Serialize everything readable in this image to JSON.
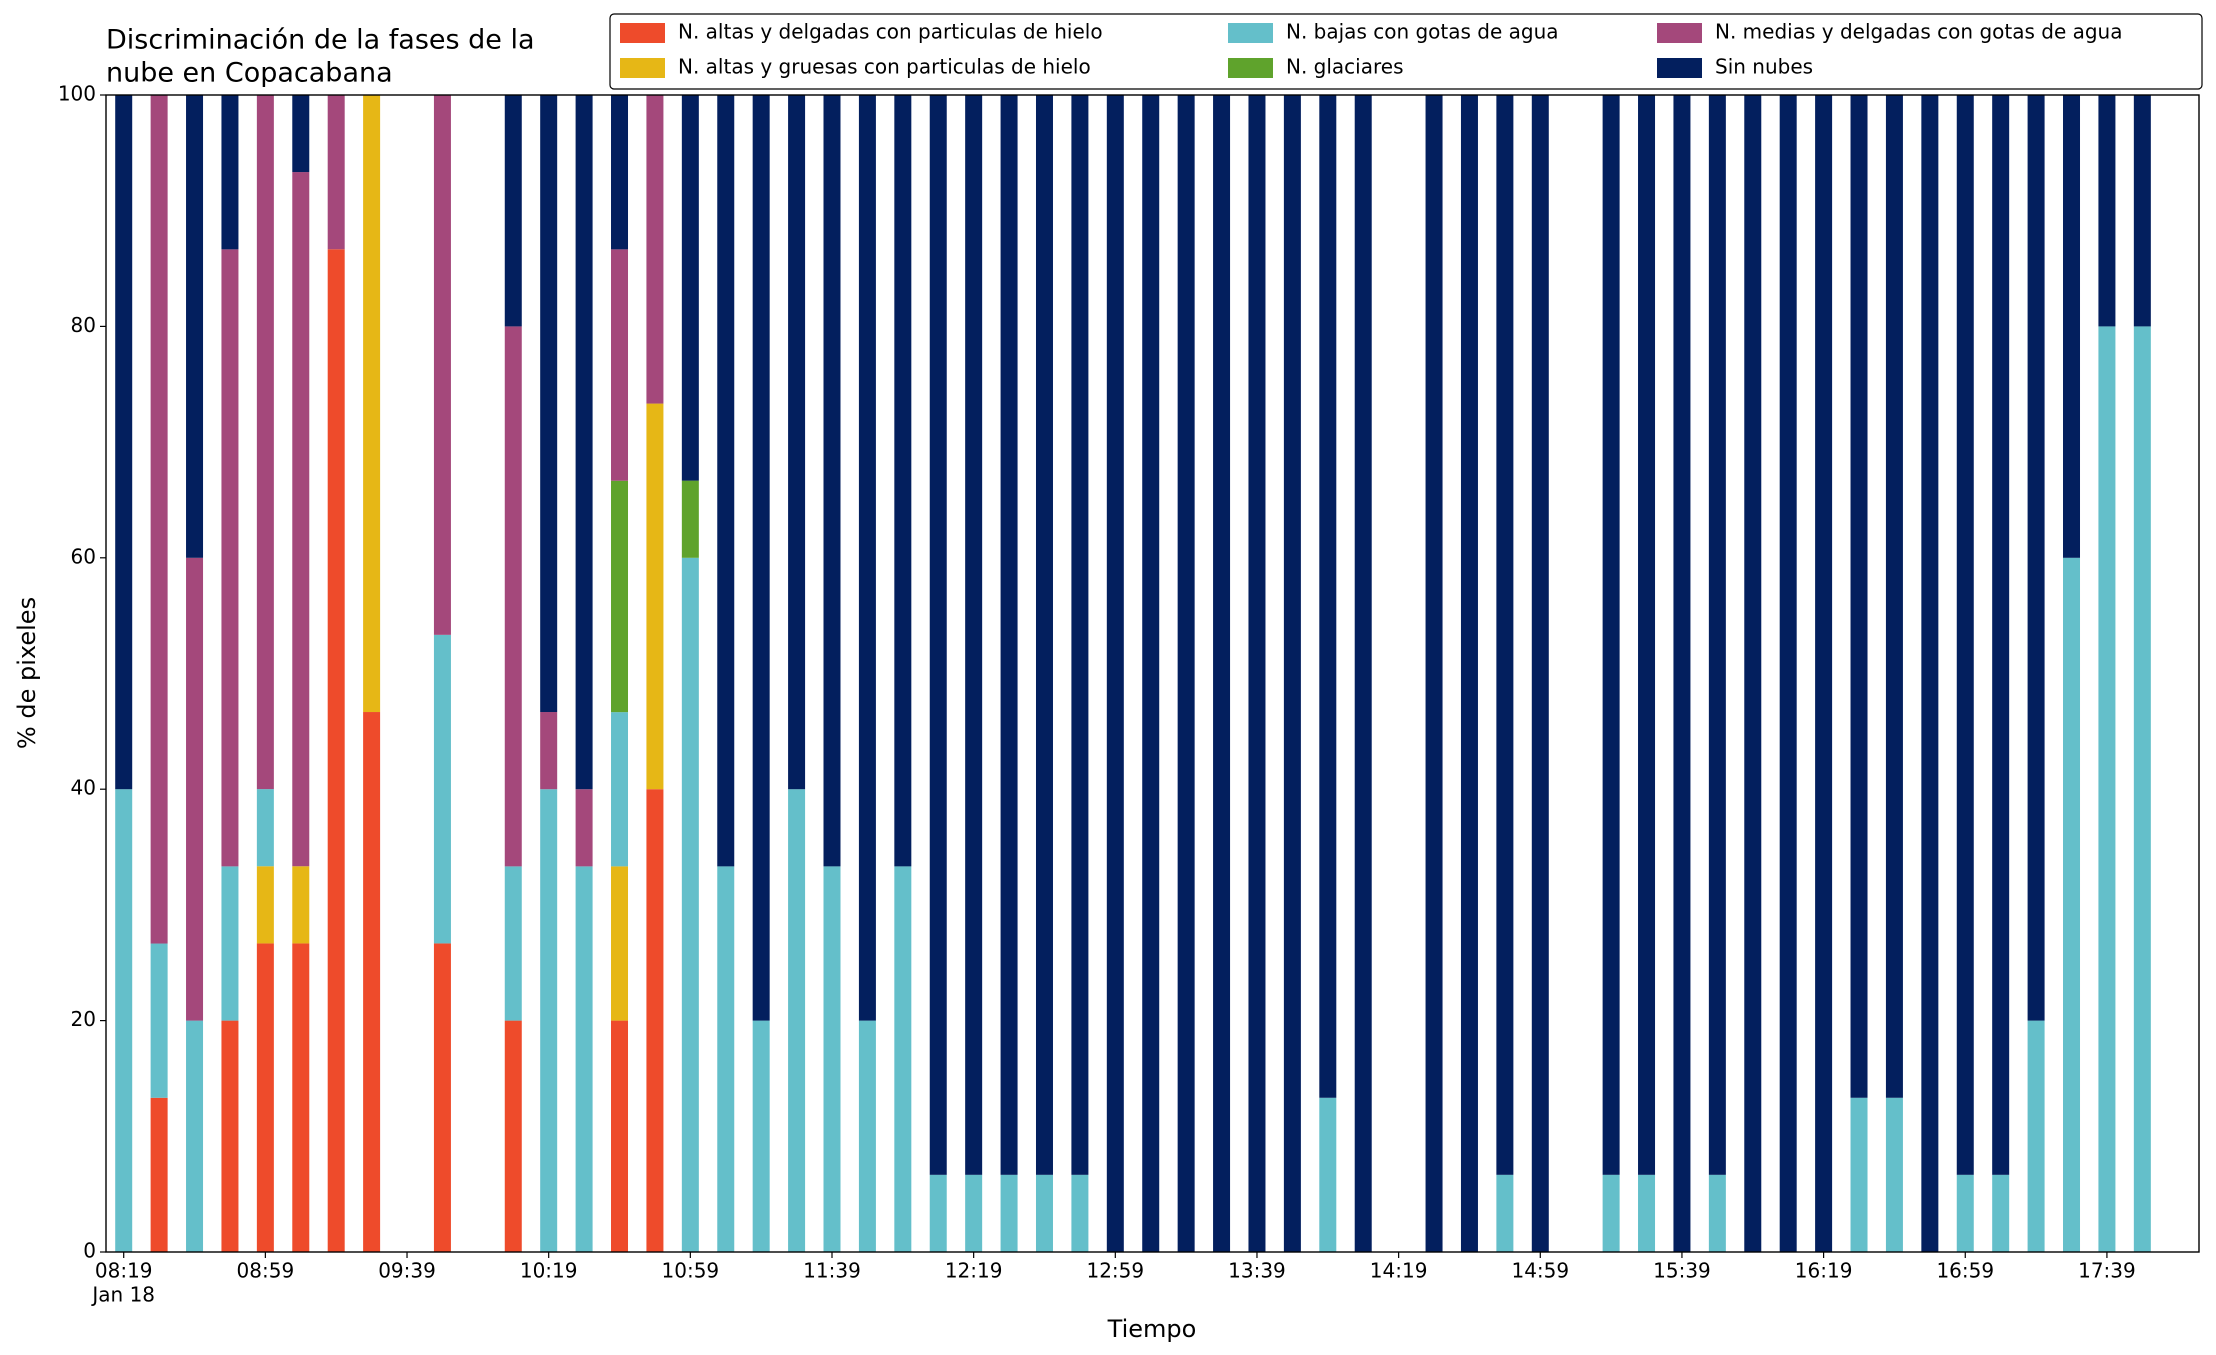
{
  "chart_data": {
    "type": "stacked_bar",
    "title": [
      "Discriminación de la fases de la",
      "nube en Copacabana"
    ],
    "xlabel": "Tiempo",
    "ylabel": "% de pixeles",
    "x_date_label": "Jan 18",
    "x": [
      "08:19",
      "08:29",
      "08:39",
      "08:49",
      "08:59",
      "09:09",
      "09:19",
      "09:29",
      "09:49",
      "10:09",
      "10:19",
      "10:29",
      "10:39",
      "10:49",
      "10:59",
      "11:09",
      "11:19",
      "11:29",
      "11:39",
      "11:49",
      "11:59",
      "12:09",
      "12:19",
      "12:29",
      "12:39",
      "12:49",
      "12:59",
      "13:09",
      "13:19",
      "13:29",
      "13:39",
      "13:49",
      "13:59",
      "14:09",
      "14:29",
      "14:39",
      "14:49",
      "14:59",
      "15:19",
      "15:29",
      "15:39",
      "15:49",
      "15:59",
      "16:09",
      "16:19",
      "16:29",
      "16:39",
      "16:49",
      "16:59",
      "17:09",
      "17:19",
      "17:29",
      "17:39",
      "17:49"
    ],
    "xlim": [
      "08:14",
      "18:05"
    ],
    "xticks": [
      "08:19",
      "08:59",
      "09:39",
      "10:19",
      "10:59",
      "11:39",
      "12:19",
      "12:59",
      "13:39",
      "14:19",
      "14:59",
      "15:39",
      "16:19",
      "16:59",
      "17:39"
    ],
    "ylim": [
      0,
      100
    ],
    "yticks": [
      0,
      20,
      40,
      60,
      80,
      100
    ],
    "legend": "top-right",
    "series": [
      {
        "name": "N. altas y delgadas con particulas de hielo",
        "color": "#ee4b2b",
        "values": [
          0,
          13.33,
          0,
          20,
          26.67,
          26.67,
          86.67,
          46.67,
          26.67,
          20,
          0,
          0,
          20,
          40,
          0,
          0,
          0,
          0,
          0,
          0,
          0,
          0,
          0,
          0,
          0,
          0,
          0,
          0,
          0,
          0,
          0,
          0,
          0,
          0,
          0,
          0,
          0,
          0,
          0,
          0,
          0,
          0,
          0,
          0,
          0,
          0,
          0,
          0,
          0,
          0,
          0,
          0,
          0,
          0
        ]
      },
      {
        "name": "N. altas y gruesas con particulas de hielo",
        "color": "#e6b716",
        "values": [
          0,
          0,
          0,
          0,
          6.67,
          6.67,
          0,
          53.33,
          0,
          0,
          0,
          0,
          13.33,
          33.33,
          0,
          0,
          0,
          0,
          0,
          0,
          0,
          0,
          0,
          0,
          0,
          0,
          0,
          0,
          0,
          0,
          0,
          0,
          0,
          0,
          0,
          0,
          0,
          0,
          0,
          0,
          0,
          0,
          0,
          0,
          0,
          0,
          0,
          0,
          0,
          0,
          0,
          0,
          0,
          0
        ]
      },
      {
        "name": "N. bajas con gotas de agua",
        "color": "#64bfca",
        "values": [
          40,
          13.33,
          20,
          13.33,
          6.67,
          0,
          0,
          0,
          26.67,
          13.33,
          40,
          33.33,
          13.33,
          0,
          60,
          33.33,
          20,
          40,
          33.33,
          20,
          33.33,
          6.67,
          6.67,
          6.67,
          6.67,
          6.67,
          0,
          0,
          0,
          0,
          0,
          0,
          13.33,
          0,
          0,
          0,
          6.67,
          0,
          6.67,
          6.67,
          0,
          6.67,
          0,
          0,
          0,
          13.33,
          13.33,
          0,
          6.67,
          6.67,
          20,
          60,
          80,
          80
        ]
      },
      {
        "name": "N. glaciares",
        "color": "#5fa32c",
        "values": [
          0,
          0,
          0,
          0,
          0,
          0,
          0,
          0,
          0,
          0,
          0,
          0,
          20,
          0,
          6.67,
          0,
          0,
          0,
          0,
          0,
          0,
          0,
          0,
          0,
          0,
          0,
          0,
          0,
          0,
          0,
          0,
          0,
          0,
          0,
          0,
          0,
          0,
          0,
          0,
          0,
          0,
          0,
          0,
          0,
          0,
          0,
          0,
          0,
          0,
          0,
          0,
          0,
          0,
          0
        ]
      },
      {
        "name": "N. medias y delgadas con gotas de agua",
        "color": "#a4487b",
        "values": [
          0,
          73.33,
          40,
          53.33,
          60,
          60,
          13.33,
          0,
          46.67,
          46.67,
          6.67,
          6.67,
          20,
          26.67,
          0,
          0,
          0,
          0,
          0,
          0,
          0,
          0,
          0,
          0,
          0,
          0,
          0,
          0,
          0,
          0,
          0,
          0,
          0,
          0,
          0,
          0,
          0,
          0,
          0,
          0,
          0,
          0,
          0,
          0,
          0,
          0,
          0,
          0,
          0,
          0,
          0,
          0,
          0,
          0
        ]
      },
      {
        "name": "Sin nubes",
        "color": "#031f5e",
        "values": [
          60,
          0,
          40,
          13.33,
          0,
          6.67,
          0,
          0,
          0,
          20,
          53.33,
          60,
          13.33,
          0,
          33.33,
          66.67,
          80,
          60,
          66.67,
          80,
          66.67,
          93.33,
          93.33,
          93.33,
          93.33,
          93.33,
          100,
          100,
          100,
          100,
          100,
          100,
          86.67,
          100,
          100,
          100,
          93.33,
          100,
          93.33,
          93.33,
          100,
          93.33,
          100,
          100,
          100,
          86.67,
          86.67,
          100,
          93.33,
          93.33,
          80,
          40,
          20,
          20
        ]
      }
    ]
  }
}
